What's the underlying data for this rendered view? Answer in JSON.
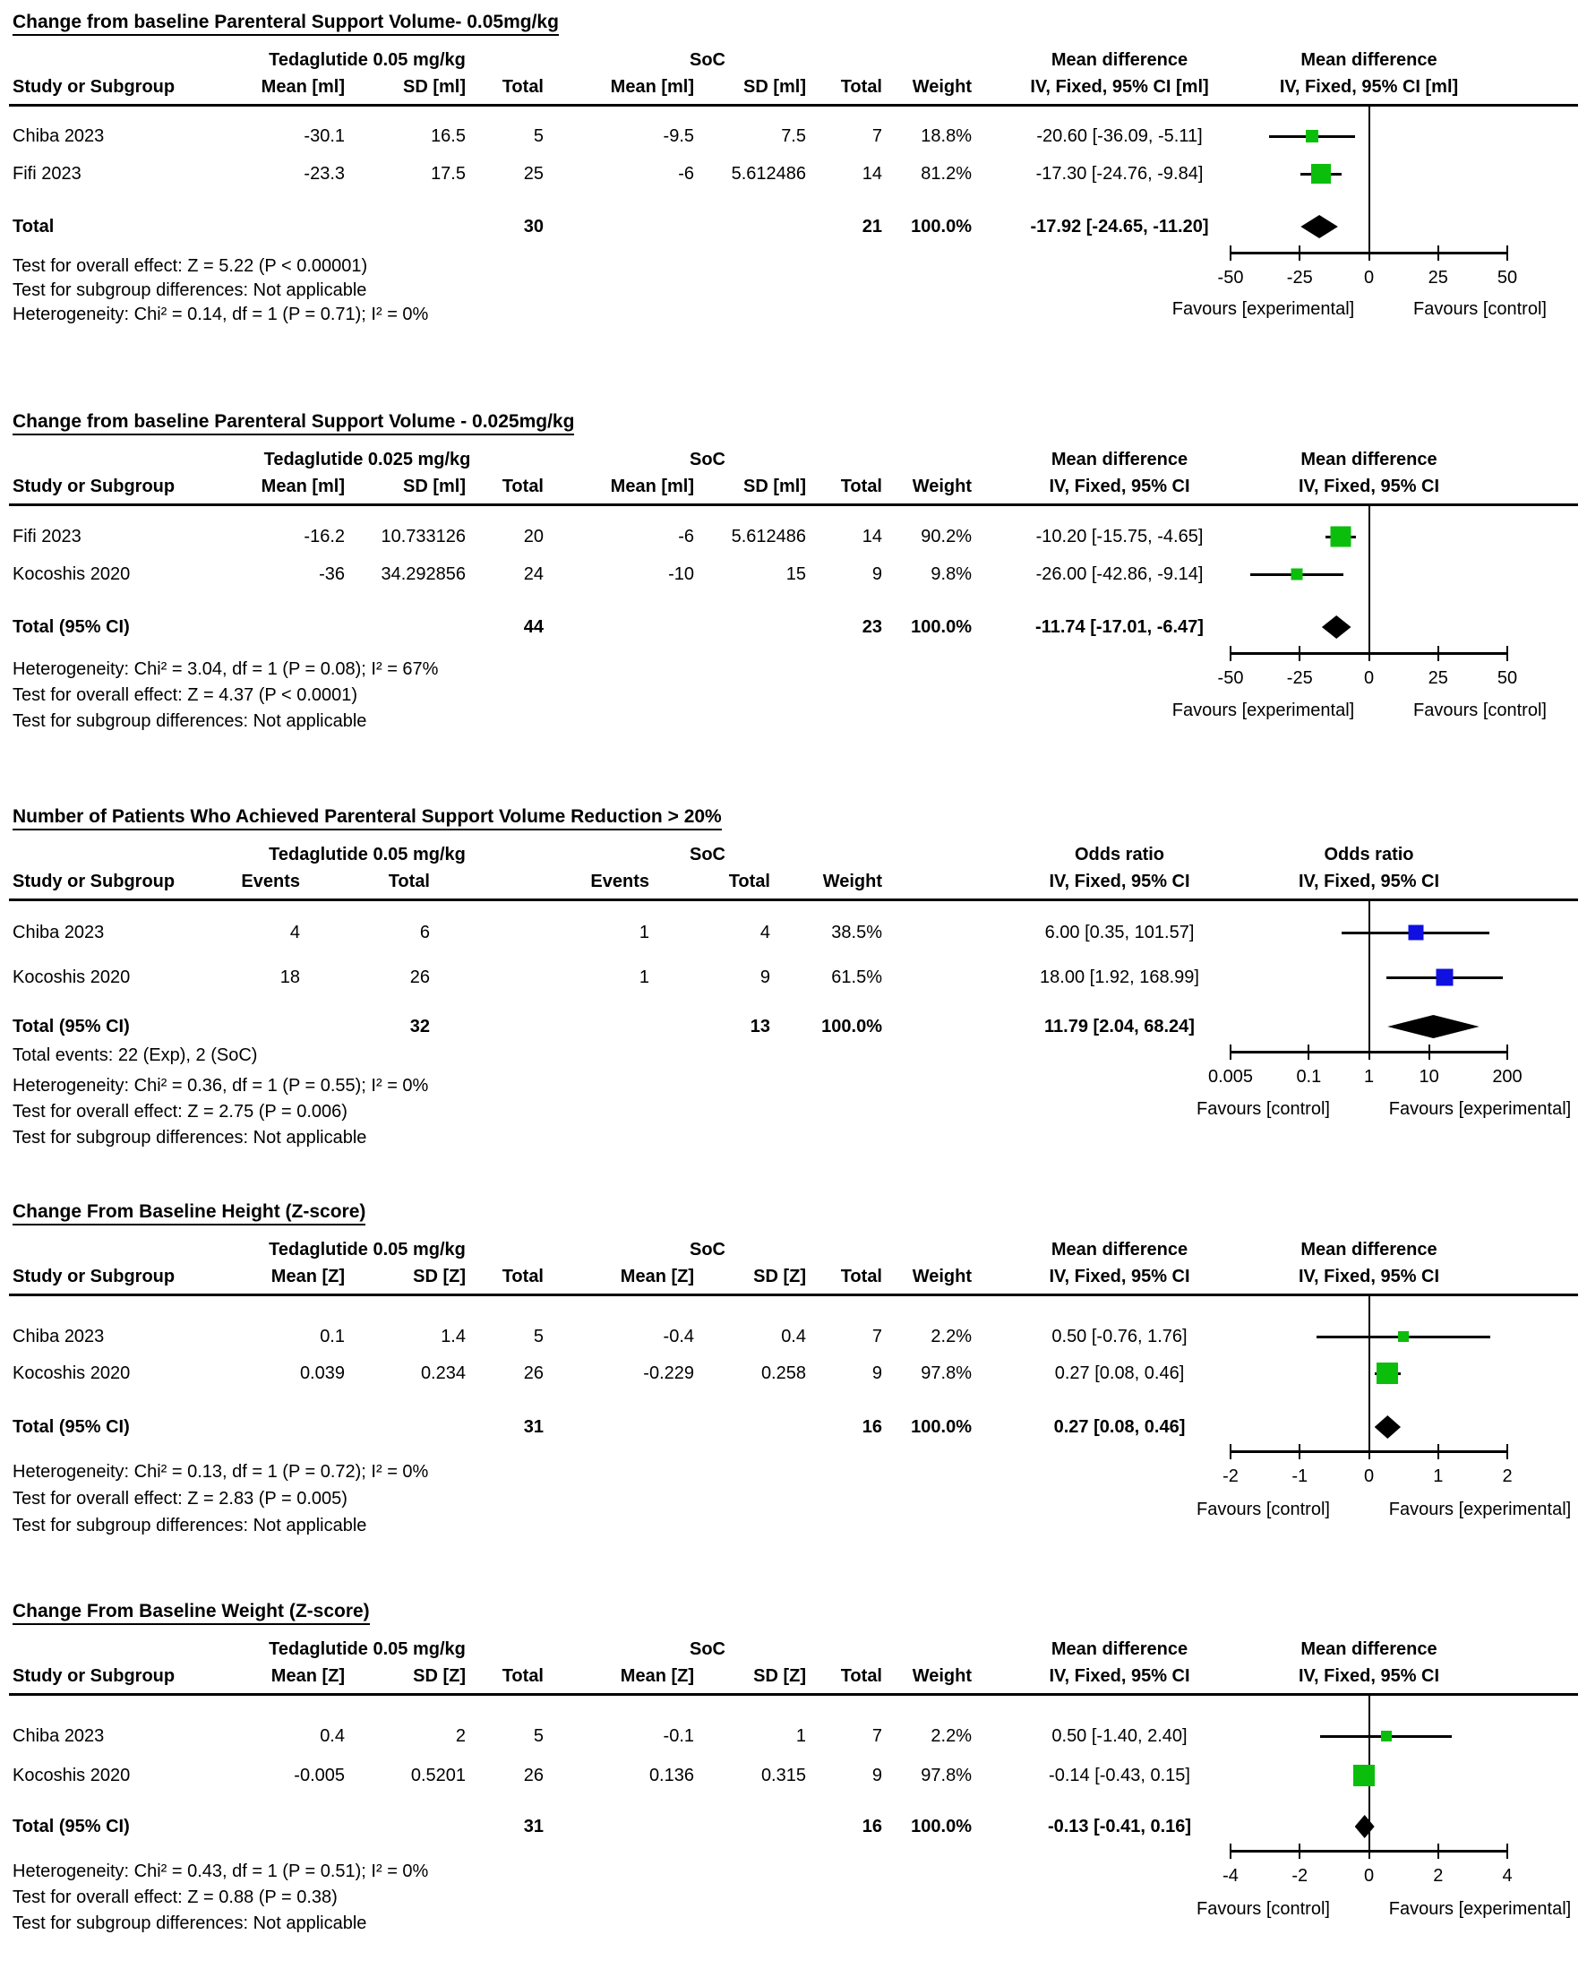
{
  "colors": {
    "background": "#ffffff",
    "text": "#000000",
    "line": "#000000",
    "green_marker": "#0cbe0c",
    "blue_marker": "#1010e0",
    "diamond": "#000000"
  },
  "chart_data": [
    {
      "type": "scatter",
      "subtype": "forest-plot",
      "title": "Change from baseline Parenteral Support Volume- 0.05mg/kg",
      "data_type": "continuous",
      "group1_label": "Tedaglutide 0.05 mg/kg",
      "group2_label": "SoC",
      "study_col_label": "Study or Subgroup",
      "col_labels_g1": [
        "Mean [ml]",
        "SD [ml]",
        "Total"
      ],
      "col_labels_g2": [
        "Mean [ml]",
        "SD [ml]",
        "Total"
      ],
      "weight_label": "Weight",
      "effect_header": [
        "Mean difference",
        "IV, Fixed, 95% CI [ml]"
      ],
      "plot_header": [
        "Mean difference",
        "IV, Fixed, 95% CI [ml]"
      ],
      "studies": [
        {
          "study": "Chiba 2023",
          "cells": [
            "-30.1",
            "16.5",
            "5",
            "-9.5",
            "7.5",
            "7",
            "18.8%"
          ],
          "weight_value": 18.8,
          "ci_text": "-20.60 [-36.09, -5.11]",
          "estimate": -20.6,
          "ci_low": -36.09,
          "ci_high": -5.11
        },
        {
          "study": "Fifi 2023",
          "cells": [
            "-23.3",
            "17.5",
            "25",
            "-6",
            "5.612486",
            "14",
            "81.2%"
          ],
          "weight_value": 81.2,
          "ci_text": "-17.30 [-24.76, -9.84]",
          "estimate": -17.3,
          "ci_low": -24.76,
          "ci_high": -9.84
        }
      ],
      "total": {
        "label": "Total",
        "g1_total": "30",
        "g2_total": "21",
        "weight": "100.0%",
        "ci_text": "-17.92 [-24.65, -11.20]",
        "estimate": -17.92,
        "ci_low": -24.65,
        "ci_high": -11.2
      },
      "notes": [],
      "stats": [
        "Test for overall effect: Z = 5.22 (P < 0.00001)",
        "Test for subgroup differences: Not applicable",
        "Heterogeneity: Chi² = 0.14, df = 1 (P = 0.71); I² = 0%"
      ],
      "axis": {
        "scale": "linear",
        "min": -50,
        "max": 50,
        "center": 0,
        "tick_values": [
          -50,
          -25,
          0,
          25,
          50
        ],
        "tick_labels": [
          "-50",
          "-25",
          "0",
          "25",
          "50"
        ]
      },
      "favours_left": "Favours [experimental]",
      "favours_right": "Favours [control]",
      "marker_color": "#0cbe0c"
    },
    {
      "type": "scatter",
      "subtype": "forest-plot",
      "title": "Change from baseline Parenteral Support Volume - 0.025mg/kg",
      "data_type": "continuous",
      "group1_label": "Tedaglutide 0.025 mg/kg",
      "group2_label": "SoC",
      "study_col_label": "Study or Subgroup",
      "col_labels_g1": [
        "Mean [ml]",
        "SD [ml]",
        "Total"
      ],
      "col_labels_g2": [
        "Mean [ml]",
        "SD [ml]",
        "Total"
      ],
      "weight_label": "Weight",
      "effect_header": [
        "Mean difference",
        "IV, Fixed, 95% CI"
      ],
      "plot_header": [
        "Mean difference",
        "IV, Fixed, 95% CI"
      ],
      "studies": [
        {
          "study": "Fifi 2023",
          "cells": [
            "-16.2",
            "10.733126",
            "20",
            "-6",
            "5.612486",
            "14",
            "90.2%"
          ],
          "weight_value": 90.2,
          "ci_text": "-10.20 [-15.75, -4.65]",
          "estimate": -10.2,
          "ci_low": -15.75,
          "ci_high": -4.65
        },
        {
          "study": "Kocoshis 2020",
          "cells": [
            "-36",
            "34.292856",
            "24",
            "-10",
            "15",
            "9",
            "9.8%"
          ],
          "weight_value": 9.8,
          "ci_text": "-26.00 [-42.86, -9.14]",
          "estimate": -26.0,
          "ci_low": -42.86,
          "ci_high": -9.14
        }
      ],
      "total": {
        "label": "Total (95% CI)",
        "g1_total": "44",
        "g2_total": "23",
        "weight": "100.0%",
        "ci_text": "-11.74 [-17.01, -6.47]",
        "estimate": -11.74,
        "ci_low": -17.01,
        "ci_high": -6.47
      },
      "notes": [],
      "stats": [
        "Heterogeneity: Chi² = 3.04, df = 1 (P = 0.08); I² = 67%",
        "Test for overall effect: Z = 4.37 (P < 0.0001)",
        "Test for subgroup differences: Not applicable"
      ],
      "axis": {
        "scale": "linear",
        "min": -50,
        "max": 50,
        "center": 0,
        "tick_values": [
          -50,
          -25,
          0,
          25,
          50
        ],
        "tick_labels": [
          "-50",
          "-25",
          "0",
          "25",
          "50"
        ]
      },
      "favours_left": "Favours [experimental]",
      "favours_right": "Favours [control]",
      "marker_color": "#0cbe0c"
    },
    {
      "type": "scatter",
      "subtype": "forest-plot",
      "title": "Number of Patients Who Achieved Parenteral Support Volume Reduction > 20%",
      "data_type": "dichotomous",
      "group1_label": "Tedaglutide 0.05 mg/kg",
      "group2_label": "SoC",
      "study_col_label": "Study or Subgroup",
      "col_labels_g1": [
        "Events",
        "Total"
      ],
      "col_labels_g2": [
        "Events",
        "Total"
      ],
      "weight_label": "Weight",
      "effect_header": [
        "Odds ratio",
        "IV, Fixed, 95% CI"
      ],
      "plot_header": [
        "Odds ratio",
        "IV, Fixed, 95% CI"
      ],
      "studies": [
        {
          "study": "Chiba 2023",
          "cells": [
            "4",
            "6",
            "1",
            "4",
            "38.5%"
          ],
          "weight_value": 38.5,
          "ci_text": "6.00 [0.35, 101.57]",
          "estimate": 6.0,
          "ci_low": 0.35,
          "ci_high": 101.57
        },
        {
          "study": "Kocoshis 2020",
          "cells": [
            "18",
            "26",
            "1",
            "9",
            "61.5%"
          ],
          "weight_value": 61.5,
          "ci_text": "18.00 [1.92, 168.99]",
          "estimate": 18.0,
          "ci_low": 1.92,
          "ci_high": 168.99
        }
      ],
      "total": {
        "label": "Total (95% CI)",
        "g1_total": "32",
        "g2_total": "13",
        "weight": "100.0%",
        "ci_text": "11.79 [2.04, 68.24]",
        "estimate": 11.79,
        "ci_low": 2.04,
        "ci_high": 68.24
      },
      "notes": [
        "Total events: 22 (Exp), 2 (SoC)"
      ],
      "stats": [
        "Heterogeneity: Chi² = 0.36, df = 1 (P = 0.55); I² = 0%",
        "Test for overall effect: Z = 2.75 (P = 0.006)",
        "Test for subgroup differences: Not applicable"
      ],
      "axis": {
        "scale": "log",
        "min": 0.005,
        "max": 200,
        "center": 1,
        "tick_values": [
          0.005,
          0.1,
          1,
          10,
          200
        ],
        "tick_labels": [
          "0.005",
          "0.1",
          "1",
          "10",
          "200"
        ]
      },
      "favours_left": "Favours [control]",
      "favours_right": "Favours [experimental]",
      "marker_color": "#1010e0"
    },
    {
      "type": "scatter",
      "subtype": "forest-plot",
      "title": "Change From Baseline Height (Z-score)",
      "data_type": "continuous",
      "group1_label": "Tedaglutide 0.05 mg/kg",
      "group2_label": "SoC",
      "study_col_label": "Study or Subgroup",
      "col_labels_g1": [
        "Mean [Z]",
        "SD [Z]",
        "Total"
      ],
      "col_labels_g2": [
        "Mean [Z]",
        "SD [Z]",
        "Total"
      ],
      "weight_label": "Weight",
      "effect_header": [
        "Mean difference",
        "IV, Fixed, 95% CI"
      ],
      "plot_header": [
        "Mean difference",
        "IV, Fixed, 95% CI"
      ],
      "studies": [
        {
          "study": "Chiba 2023",
          "cells": [
            "0.1",
            "1.4",
            "5",
            "-0.4",
            "0.4",
            "7",
            "2.2%"
          ],
          "weight_value": 2.2,
          "ci_text": "0.50 [-0.76, 1.76]",
          "estimate": 0.5,
          "ci_low": -0.76,
          "ci_high": 1.76
        },
        {
          "study": "Kocoshis 2020",
          "cells": [
            "0.039",
            "0.234",
            "26",
            "-0.229",
            "0.258",
            "9",
            "97.8%"
          ],
          "weight_value": 97.8,
          "ci_text": "0.27 [0.08, 0.46]",
          "estimate": 0.27,
          "ci_low": 0.08,
          "ci_high": 0.46
        }
      ],
      "total": {
        "label": "Total (95% CI)",
        "g1_total": "31",
        "g2_total": "16",
        "weight": "100.0%",
        "ci_text": "0.27 [0.08, 0.46]",
        "estimate": 0.27,
        "ci_low": 0.08,
        "ci_high": 0.46
      },
      "notes": [],
      "stats": [
        "Heterogeneity: Chi² = 0.13, df = 1 (P = 0.72); I² = 0%",
        "Test for overall effect: Z = 2.83 (P = 0.005)",
        "Test for subgroup differences: Not applicable"
      ],
      "axis": {
        "scale": "linear",
        "min": -2,
        "max": 2,
        "center": 0,
        "tick_values": [
          -2,
          -1,
          0,
          1,
          2
        ],
        "tick_labels": [
          "-2",
          "-1",
          "0",
          "1",
          "2"
        ]
      },
      "favours_left": "Favours [control]",
      "favours_right": "Favours [experimental]",
      "marker_color": "#0cbe0c"
    },
    {
      "type": "scatter",
      "subtype": "forest-plot",
      "title": "Change From Baseline Weight (Z-score)",
      "data_type": "continuous",
      "group1_label": "Tedaglutide 0.05 mg/kg",
      "group2_label": "SoC",
      "study_col_label": "Study or Subgroup",
      "col_labels_g1": [
        "Mean [Z]",
        "SD [Z]",
        "Total"
      ],
      "col_labels_g2": [
        "Mean [Z]",
        "SD [Z]",
        "Total"
      ],
      "weight_label": "Weight",
      "effect_header": [
        "Mean difference",
        "IV, Fixed, 95% CI"
      ],
      "plot_header": [
        "Mean difference",
        "IV, Fixed, 95% CI"
      ],
      "studies": [
        {
          "study": "Chiba 2023",
          "cells": [
            "0.4",
            "2",
            "5",
            "-0.1",
            "1",
            "7",
            "2.2%"
          ],
          "weight_value": 2.2,
          "ci_text": "0.50 [-1.40, 2.40]",
          "estimate": 0.5,
          "ci_low": -1.4,
          "ci_high": 2.4
        },
        {
          "study": "Kocoshis 2020",
          "cells": [
            "-0.005",
            "0.5201",
            "26",
            "0.136",
            "0.315",
            "9",
            "97.8%"
          ],
          "weight_value": 97.8,
          "ci_text": "-0.14 [-0.43, 0.15]",
          "estimate": -0.14,
          "ci_low": -0.43,
          "ci_high": 0.15
        }
      ],
      "total": {
        "label": "Total (95% CI)",
        "g1_total": "31",
        "g2_total": "16",
        "weight": "100.0%",
        "ci_text": "-0.13 [-0.41, 0.16]",
        "estimate": -0.13,
        "ci_low": -0.41,
        "ci_high": 0.16
      },
      "notes": [],
      "stats": [
        "Heterogeneity: Chi² = 0.43, df = 1 (P = 0.51); I² = 0%",
        "Test for overall effect: Z = 0.88 (P = 0.38)",
        "Test for subgroup differences: Not applicable"
      ],
      "axis": {
        "scale": "linear",
        "min": -4,
        "max": 4,
        "center": 0,
        "tick_values": [
          -4,
          -2,
          0,
          2,
          4
        ],
        "tick_labels": [
          "-4",
          "-2",
          "0",
          "2",
          "4"
        ]
      },
      "favours_left": "Favours [control]",
      "favours_right": "Favours [experimental]",
      "marker_color": "#0cbe0c"
    }
  ]
}
